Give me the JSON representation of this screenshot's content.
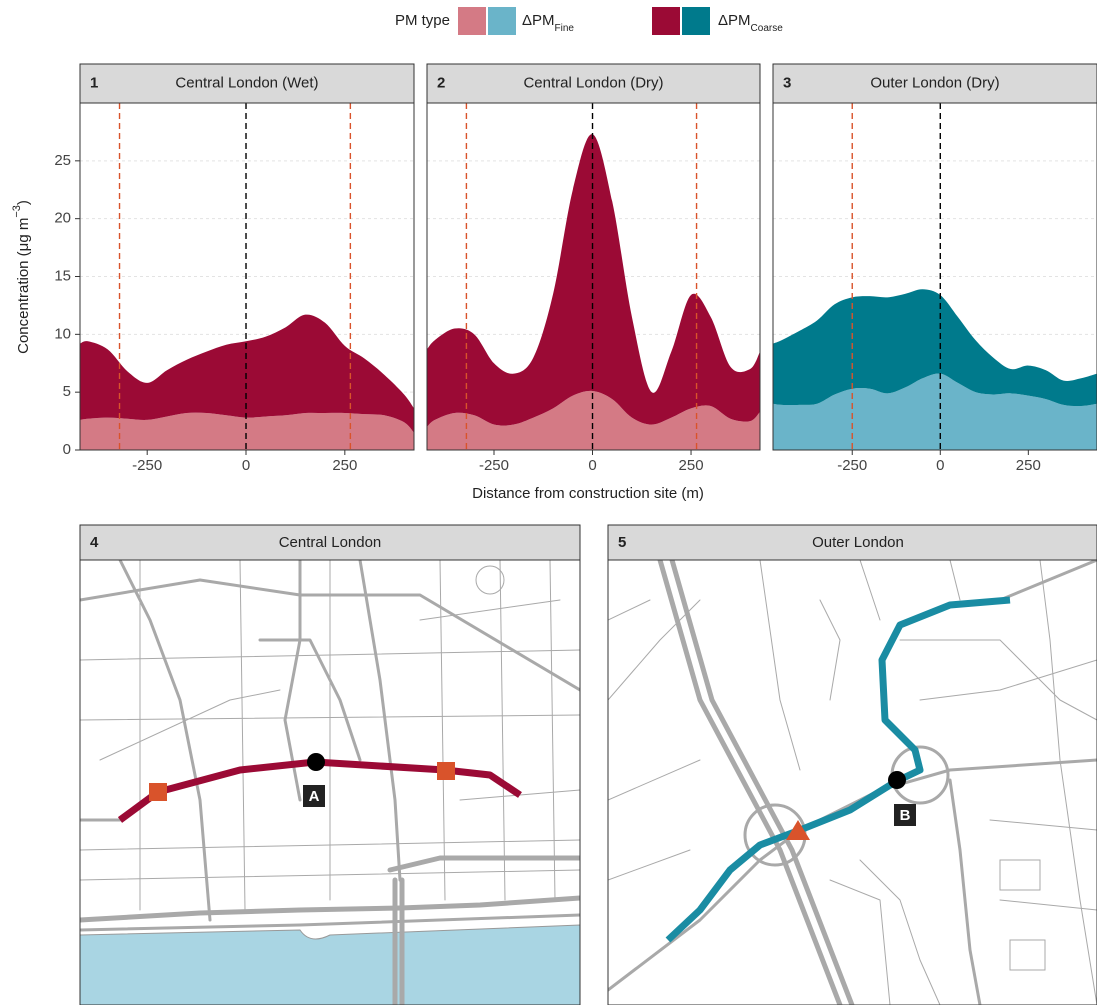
{
  "legend": {
    "title": "PM type",
    "entries": [
      {
        "label": "ΔPM",
        "subscript": "Fine",
        "colors": [
          "#d47a85",
          "#6ab4c9"
        ]
      },
      {
        "label": "ΔPM",
        "subscript": "Coarse",
        "colors": [
          "#9b0a35",
          "#007a8c"
        ]
      }
    ]
  },
  "y_label": {
    "text": "Concentration (μg m",
    "superscript": "−3",
    "suffix": ")"
  },
  "x_label": "Distance from construction site (m)",
  "chart_data": [
    {
      "type": "area",
      "stacked": true,
      "number": "1",
      "title": "Central London (Wet)",
      "x": [
        -420,
        -400,
        -350,
        -300,
        -250,
        -200,
        -150,
        -100,
        -50,
        0,
        50,
        100,
        150,
        200,
        250,
        300,
        350,
        400,
        425
      ],
      "series": [
        {
          "color": "#d47a85",
          "values": [
            2.6,
            2.7,
            2.8,
            2.7,
            2.6,
            2.9,
            3.2,
            3.2,
            3.0,
            2.8,
            2.9,
            3.0,
            3.2,
            3.2,
            3.2,
            3.1,
            3.0,
            2.4,
            1.5
          ]
        },
        {
          "color": "#9b0a35",
          "values": [
            6.6,
            6.7,
            5.9,
            4.1,
            3.2,
            4.0,
            4.6,
            5.3,
            6.1,
            6.6,
            6.9,
            7.6,
            8.5,
            7.8,
            5.8,
            4.8,
            3.5,
            2.4,
            2.1
          ]
        }
      ],
      "xlim": [
        -420,
        425
      ],
      "ylim": [
        0,
        30
      ],
      "xticks": [
        -250,
        0,
        250
      ],
      "yticks": [
        0,
        5,
        10,
        15,
        20,
        25
      ],
      "grid": true,
      "reference_lines": [
        {
          "value": -320,
          "color": "#d9532b"
        },
        {
          "value": 0,
          "color": "#000000"
        },
        {
          "value": 264,
          "color": "#d9532b"
        }
      ]
    },
    {
      "type": "area",
      "stacked": true,
      "number": "2",
      "title": "Central London (Dry)",
      "x": [
        -420,
        -400,
        -350,
        -300,
        -250,
        -200,
        -150,
        -100,
        -50,
        0,
        50,
        100,
        150,
        200,
        250,
        300,
        350,
        400,
        425
      ],
      "series": [
        {
          "color": "#d47a85",
          "values": [
            2.0,
            2.6,
            3.2,
            3.0,
            2.2,
            2.2,
            2.8,
            3.6,
            4.7,
            5.1,
            4.4,
            2.8,
            2.2,
            2.8,
            3.6,
            3.8,
            2.7,
            2.5,
            3.3
          ]
        },
        {
          "color": "#9b0a35",
          "values": [
            6.7,
            6.9,
            7.3,
            7.0,
            5.3,
            4.4,
            5.2,
            9.9,
            17.8,
            22.2,
            17.1,
            8.7,
            2.8,
            5.7,
            9.8,
            7.7,
            4.5,
            4.5,
            5.2
          ]
        }
      ],
      "xlim": [
        -420,
        425
      ],
      "ylim": [
        0,
        30
      ],
      "xticks": [
        -250,
        0,
        250
      ],
      "yticks": [
        0,
        5,
        10,
        15,
        20,
        25
      ],
      "grid": true,
      "reference_lines": [
        {
          "value": -320,
          "color": "#d9532b"
        },
        {
          "value": 0,
          "color": "#000000"
        },
        {
          "value": 264,
          "color": "#d9532b"
        }
      ]
    },
    {
      "type": "area",
      "stacked": true,
      "number": "3",
      "title": "Outer London (Dry)",
      "x": [
        -475,
        -450,
        -400,
        -350,
        -300,
        -250,
        -200,
        -150,
        -100,
        -50,
        0,
        50,
        100,
        150,
        200,
        250,
        300,
        350,
        400,
        445
      ],
      "series": [
        {
          "color": "#6ab4c9",
          "values": [
            4.0,
            3.9,
            3.9,
            4.0,
            4.8,
            5.3,
            5.3,
            4.9,
            5.4,
            6.2,
            6.6,
            5.8,
            5.0,
            4.8,
            4.9,
            4.7,
            4.4,
            3.9,
            3.8,
            4.0
          ]
        },
        {
          "color": "#007a8c",
          "values": [
            5.2,
            5.6,
            6.4,
            7.2,
            7.8,
            7.9,
            8.0,
            8.3,
            8.1,
            7.7,
            6.8,
            5.7,
            4.5,
            3.2,
            2.1,
            2.6,
            2.5,
            2.1,
            2.4,
            2.6
          ]
        }
      ],
      "xlim": [
        -475,
        445
      ],
      "ylim": [
        0,
        30
      ],
      "xticks": [
        -250,
        0,
        250
      ],
      "yticks": [
        0,
        5,
        10,
        15,
        20,
        25
      ],
      "grid": true,
      "reference_lines": [
        {
          "value": -250,
          "color": "#d9532b"
        },
        {
          "value": 0,
          "color": "#000000"
        }
      ]
    }
  ],
  "maps": [
    {
      "number": "4",
      "title": "Central London",
      "marker": "A"
    },
    {
      "number": "5",
      "title": "Outer London",
      "marker": "B"
    }
  ]
}
